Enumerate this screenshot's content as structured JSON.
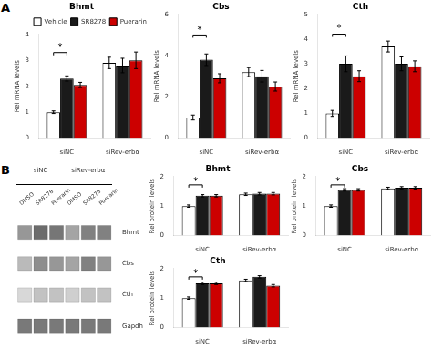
{
  "chart_data": [
    {
      "type": "bar",
      "title": "Bhmt",
      "panel_label": "A",
      "ylabel": "Rel mRNA levels",
      "categories": [
        "siNC",
        "siRev-erbα"
      ],
      "series": [
        {
          "name": "Vehicle",
          "color": "#ffffff",
          "values": [
            1.0,
            2.9
          ],
          "errors": [
            0.05,
            0.22
          ]
        },
        {
          "name": "SR8278",
          "color": "#1a1a1a",
          "values": [
            2.3,
            2.8
          ],
          "errors": [
            0.1,
            0.28
          ]
        },
        {
          "name": "Puerarin",
          "color": "#cc0000",
          "values": [
            2.05,
            3.0
          ],
          "errors": [
            0.1,
            0.32
          ]
        }
      ],
      "ylim": [
        0,
        4
      ],
      "yticks": [
        0,
        1,
        2,
        3,
        4
      ],
      "grid": false,
      "legend": "upper right",
      "annotations": [
        {
          "text": "*",
          "category": "siNC",
          "from": "Vehicle",
          "to": "SR8278",
          "bracket_y": 3.3,
          "y": 3.42
        }
      ]
    },
    {
      "type": "bar",
      "title": "Cbs",
      "ylabel": "Rel mRNA levels",
      "categories": [
        "siNC",
        "siRev-erbα"
      ],
      "series": [
        {
          "name": "Vehicle",
          "color": "#ffffff",
          "values": [
            1.0,
            3.2
          ],
          "errors": [
            0.12,
            0.22
          ]
        },
        {
          "name": "SR8278",
          "color": "#1a1a1a",
          "values": [
            3.8,
            3.0
          ],
          "errors": [
            0.28,
            0.28
          ]
        },
        {
          "name": "Puerarin",
          "color": "#cc0000",
          "values": [
            2.9,
            2.5
          ],
          "errors": [
            0.22,
            0.22
          ]
        }
      ],
      "ylim": [
        0,
        6
      ],
      "yticks": [
        0,
        2,
        4,
        6
      ],
      "grid": false,
      "annotations": [
        {
          "text": "*",
          "category": "siNC",
          "from": "Vehicle",
          "to": "SR8278",
          "bracket_y": 5.0,
          "y": 5.15
        }
      ]
    },
    {
      "type": "bar",
      "title": "Cth",
      "ylabel": "Rel mRNA levels",
      "categories": [
        "siNC",
        "siRev-erbα"
      ],
      "series": [
        {
          "name": "Vehicle",
          "color": "#ffffff",
          "values": [
            1.0,
            3.7
          ],
          "errors": [
            0.12,
            0.22
          ]
        },
        {
          "name": "SR8278",
          "color": "#1a1a1a",
          "values": [
            3.0,
            3.0
          ],
          "errors": [
            0.32,
            0.28
          ]
        },
        {
          "name": "Puerarin",
          "color": "#cc0000",
          "values": [
            2.5,
            2.9
          ],
          "errors": [
            0.22,
            0.22
          ]
        }
      ],
      "ylim": [
        0,
        5
      ],
      "yticks": [
        0,
        1,
        2,
        3,
        4,
        5
      ],
      "grid": false,
      "annotations": [
        {
          "text": "*",
          "category": "siNC",
          "from": "Vehicle",
          "to": "SR8278",
          "bracket_y": 4.2,
          "y": 4.35
        }
      ]
    },
    {
      "type": "heatmap",
      "panel_label": "B",
      "groups": [
        "siNC",
        "siRev-erbα"
      ],
      "categories": [
        "DMSO",
        "SR8278",
        "Puerarin",
        "DMSO",
        "SR8278",
        "Puerarin"
      ],
      "rows": [
        "Bhmt",
        "Cbs",
        "Cth",
        "Gapdh"
      ],
      "values": [
        [
          0.48,
          0.68,
          0.63,
          0.42,
          0.58,
          0.58
        ],
        [
          0.32,
          0.52,
          0.48,
          0.42,
          0.58,
          0.48
        ],
        [
          0.18,
          0.28,
          0.28,
          0.22,
          0.28,
          0.28
        ],
        [
          0.62,
          0.62,
          0.62,
          0.62,
          0.62,
          0.62
        ]
      ]
    },
    {
      "type": "bar",
      "title": "Bhmt",
      "ylabel": "Rel protein levels",
      "categories": [
        "siNC",
        "siRev-erbα"
      ],
      "series": [
        {
          "name": "Vehicle",
          "color": "#ffffff",
          "values": [
            1.0,
            1.4
          ],
          "errors": [
            0.04,
            0.04
          ]
        },
        {
          "name": "SR8278",
          "color": "#1a1a1a",
          "values": [
            1.35,
            1.42
          ],
          "errors": [
            0.04,
            0.04
          ]
        },
        {
          "name": "Puerarin",
          "color": "#cc0000",
          "values": [
            1.35,
            1.42
          ],
          "errors": [
            0.04,
            0.04
          ]
        }
      ],
      "ylim": [
        0,
        2
      ],
      "yticks": [
        0,
        1,
        2
      ],
      "grid": false,
      "annotations": [
        {
          "text": "*",
          "category": "siNC",
          "from": "Vehicle",
          "to": "SR8278",
          "bracket_y": 1.72,
          "y": 1.78
        }
      ]
    },
    {
      "type": "bar",
      "title": "Cbs",
      "ylabel": "Rel protein levels",
      "categories": [
        "siNC",
        "siRev-erbα"
      ],
      "series": [
        {
          "name": "Vehicle",
          "color": "#ffffff",
          "values": [
            1.0,
            1.6
          ],
          "errors": [
            0.04,
            0.04
          ]
        },
        {
          "name": "SR8278",
          "color": "#1a1a1a",
          "values": [
            1.55,
            1.62
          ],
          "errors": [
            0.04,
            0.04
          ]
        },
        {
          "name": "Puerarin",
          "color": "#cc0000",
          "values": [
            1.55,
            1.62
          ],
          "errors": [
            0.04,
            0.04
          ]
        }
      ],
      "ylim": [
        0,
        2
      ],
      "yticks": [
        0,
        1,
        2
      ],
      "grid": false,
      "annotations": [
        {
          "text": "*",
          "category": "siNC",
          "from": "Vehicle",
          "to": "SR8278",
          "bracket_y": 1.72,
          "y": 1.78
        }
      ]
    },
    {
      "type": "bar",
      "title": "Cth",
      "ylabel": "Rel protein levels",
      "categories": [
        "siNC",
        "siRev-erbα"
      ],
      "series": [
        {
          "name": "Vehicle",
          "color": "#ffffff",
          "values": [
            1.0,
            1.6
          ],
          "errors": [
            0.04,
            0.04
          ]
        },
        {
          "name": "SR8278",
          "color": "#1a1a1a",
          "values": [
            1.5,
            1.72
          ],
          "errors": [
            0.04,
            0.04
          ]
        },
        {
          "name": "Puerarin",
          "color": "#cc0000",
          "values": [
            1.5,
            1.42
          ],
          "errors": [
            0.04,
            0.04
          ]
        }
      ],
      "ylim": [
        0,
        2
      ],
      "yticks": [
        0,
        1,
        2
      ],
      "grid": false,
      "annotations": [
        {
          "text": "*",
          "category": "siNC",
          "from": "Vehicle",
          "to": "SR8278",
          "bracket_y": 1.72,
          "y": 1.78
        }
      ]
    }
  ]
}
